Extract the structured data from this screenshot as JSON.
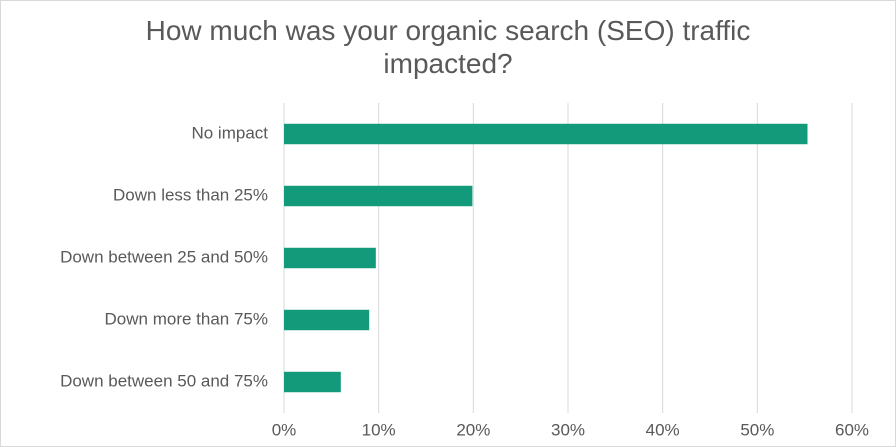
{
  "chart_data": {
    "type": "bar",
    "orientation": "horizontal",
    "title_lines": [
      "How much was your organic search (SEO) traffic",
      "impacted?"
    ],
    "categories": [
      "No impact",
      "Down less than 25%",
      "Down between 25 and 50%",
      "Down more than 75%",
      "Down between 50 and 75%"
    ],
    "values": [
      55.3,
      19.9,
      9.7,
      9.0,
      6.0
    ],
    "xlim": [
      0,
      60
    ],
    "xticks": [
      0,
      10,
      20,
      30,
      40,
      50,
      60
    ],
    "xtick_labels": [
      "0%",
      "10%",
      "20%",
      "30%",
      "40%",
      "50%",
      "60%"
    ],
    "grid": "vertical",
    "legend": "none",
    "bar_color": "#139A7B"
  }
}
